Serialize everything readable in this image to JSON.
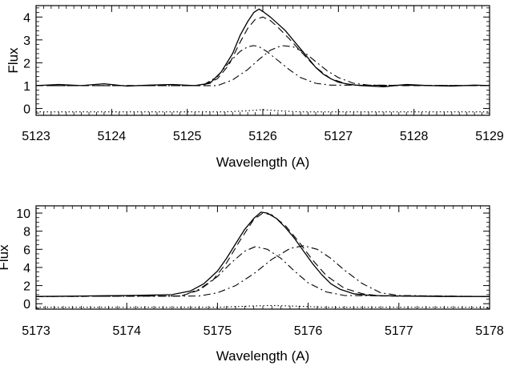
{
  "chart_data": [
    {
      "type": "line",
      "xlabel": "Wavelength (A)",
      "ylabel": "Flux",
      "xlim": [
        5123,
        5129
      ],
      "ylim": [
        -0.3,
        4.5
      ],
      "x_ticks": [
        "5123",
        "5124",
        "5125",
        "5126",
        "5127",
        "5128",
        "5129"
      ],
      "y_ticks": [
        "0",
        "1",
        "2",
        "3",
        "4"
      ],
      "grid": false,
      "legend": "none",
      "series": [
        {
          "style": "solid",
          "x": [
            5123.0,
            5123.3,
            5123.6,
            5123.9,
            5124.2,
            5124.5,
            5124.8,
            5125.1,
            5125.3,
            5125.45,
            5125.6,
            5125.7,
            5125.8,
            5125.88,
            5125.95,
            5126.02,
            5126.1,
            5126.2,
            5126.3,
            5126.4,
            5126.5,
            5126.6,
            5126.7,
            5126.8,
            5126.9,
            5127.0,
            5127.15,
            5127.3,
            5127.6,
            5127.9,
            5128.2,
            5128.5,
            5128.8,
            5129.0
          ],
          "y": [
            1.0,
            1.05,
            1.0,
            1.08,
            0.98,
            1.02,
            1.05,
            1.0,
            1.1,
            1.6,
            2.4,
            3.2,
            3.8,
            4.2,
            4.35,
            4.2,
            4.0,
            3.7,
            3.4,
            3.0,
            2.6,
            2.2,
            1.8,
            1.5,
            1.3,
            1.15,
            1.05,
            1.0,
            0.95,
            1.05,
            1.0,
            0.98,
            1.02,
            1.0
          ]
        },
        {
          "style": "dashed",
          "x": [
            5123.0,
            5125.2,
            5125.4,
            5125.55,
            5125.7,
            5125.8,
            5125.9,
            5126.0,
            5126.1,
            5126.2,
            5126.35,
            5126.5,
            5126.7,
            5126.9,
            5127.1,
            5127.3,
            5129.0
          ],
          "y": [
            1.0,
            1.0,
            1.3,
            1.9,
            2.9,
            3.5,
            3.9,
            4.0,
            3.85,
            3.55,
            3.05,
            2.5,
            1.8,
            1.3,
            1.08,
            1.0,
            1.0
          ]
        },
        {
          "style": "dash-dot",
          "x": [
            5123.0,
            5125.2,
            5125.4,
            5125.55,
            5125.7,
            5125.8,
            5125.88,
            5125.95,
            5126.05,
            5126.2,
            5126.35,
            5126.5,
            5126.7,
            5126.9,
            5129.0
          ],
          "y": [
            1.0,
            1.0,
            1.4,
            2.0,
            2.5,
            2.7,
            2.75,
            2.7,
            2.5,
            2.1,
            1.7,
            1.35,
            1.1,
            1.02,
            1.0
          ]
        },
        {
          "style": "dash-dot",
          "x": [
            5123.0,
            5125.4,
            5125.6,
            5125.8,
            5125.95,
            5126.1,
            5126.25,
            5126.4,
            5126.55,
            5126.7,
            5126.85,
            5127.0,
            5127.2,
            5127.4,
            5129.0
          ],
          "y": [
            1.0,
            1.0,
            1.25,
            1.7,
            2.15,
            2.55,
            2.75,
            2.7,
            2.45,
            2.05,
            1.65,
            1.35,
            1.1,
            1.02,
            1.0
          ]
        },
        {
          "style": "dotted",
          "x": [
            5123.0,
            5125.5,
            5125.8,
            5126.0,
            5126.2,
            5126.5,
            5129.0
          ],
          "y": [
            -0.15,
            -0.15,
            -0.1,
            -0.05,
            -0.1,
            -0.15,
            -0.15
          ]
        }
      ]
    },
    {
      "type": "line",
      "xlabel": "Wavelength (A)",
      "ylabel": "Flux",
      "xlim": [
        5173,
        5178
      ],
      "ylim": [
        -0.6,
        10.8
      ],
      "x_ticks": [
        "5173",
        "5174",
        "5175",
        "5176",
        "5177",
        "5178"
      ],
      "y_ticks": [
        "0",
        "2",
        "4",
        "6",
        "8",
        "10"
      ],
      "grid": false,
      "legend": "none",
      "series": [
        {
          "style": "solid",
          "x": [
            5173.0,
            5173.5,
            5174.0,
            5174.5,
            5174.7,
            5174.85,
            5175.0,
            5175.1,
            5175.2,
            5175.3,
            5175.4,
            5175.48,
            5175.55,
            5175.65,
            5175.75,
            5175.85,
            5175.95,
            5176.05,
            5176.15,
            5176.25,
            5176.35,
            5176.5,
            5176.7,
            5177.0,
            5177.5,
            5178.0
          ],
          "y": [
            0.8,
            0.85,
            0.9,
            1.0,
            1.4,
            2.2,
            3.6,
            5.0,
            6.6,
            8.2,
            9.4,
            10.1,
            10.0,
            9.4,
            8.4,
            7.2,
            5.8,
            4.4,
            3.2,
            2.2,
            1.6,
            1.1,
            0.9,
            0.85,
            0.8,
            0.8
          ]
        },
        {
          "style": "dashed",
          "x": [
            5173.0,
            5174.6,
            5174.8,
            5174.95,
            5175.1,
            5175.25,
            5175.4,
            5175.5,
            5175.6,
            5175.75,
            5175.9,
            5176.05,
            5176.2,
            5176.4,
            5176.6,
            5176.8,
            5178.0
          ],
          "y": [
            0.8,
            0.85,
            1.5,
            2.6,
            4.5,
            7.0,
            9.3,
            10.0,
            9.8,
            8.6,
            6.8,
            4.8,
            3.1,
            1.7,
            1.1,
            0.85,
            0.8
          ]
        },
        {
          "style": "dash-dot",
          "x": [
            5173.0,
            5174.6,
            5174.8,
            5175.0,
            5175.15,
            5175.3,
            5175.42,
            5175.55,
            5175.7,
            5175.85,
            5176.0,
            5176.2,
            5176.4,
            5178.0
          ],
          "y": [
            0.8,
            0.85,
            1.6,
            3.0,
            4.5,
            5.8,
            6.3,
            6.0,
            5.0,
            3.6,
            2.3,
            1.3,
            0.9,
            0.8
          ]
        },
        {
          "style": "dash-dot",
          "x": [
            5173.0,
            5174.8,
            5175.0,
            5175.2,
            5175.4,
            5175.6,
            5175.8,
            5175.95,
            5176.1,
            5176.25,
            5176.4,
            5176.6,
            5176.8,
            5177.0,
            5178.0
          ],
          "y": [
            0.8,
            0.85,
            1.2,
            2.0,
            3.3,
            4.9,
            6.1,
            6.4,
            6.0,
            5.0,
            3.7,
            2.2,
            1.2,
            0.9,
            0.8
          ]
        },
        {
          "style": "dotted",
          "x": [
            5173.0,
            5175.0,
            5175.4,
            5175.6,
            5175.8,
            5176.2,
            5178.0
          ],
          "y": [
            -0.4,
            -0.4,
            -0.25,
            -0.2,
            -0.25,
            -0.4,
            -0.4
          ]
        }
      ]
    }
  ]
}
